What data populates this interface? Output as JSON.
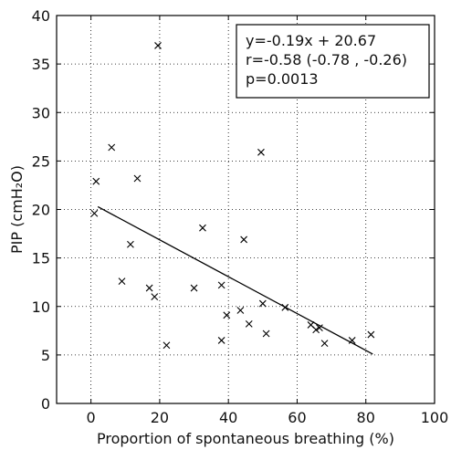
{
  "chart_data": {
    "type": "scatter",
    "xlabel": "Proportion of spontaneous breathing (%)",
    "ylabel": "PIP (cmH₂O)",
    "xlim": [
      -10,
      100
    ],
    "ylim": [
      0,
      40
    ],
    "xticks": [
      0,
      20,
      40,
      60,
      80,
      100
    ],
    "yticks": [
      0,
      5,
      10,
      15,
      20,
      25,
      30,
      35,
      40
    ],
    "grid": true,
    "grid_style": "dotted",
    "marker": "x",
    "points": [
      {
        "x": 19.5,
        "y": 36.9
      },
      {
        "x": 6.0,
        "y": 26.4
      },
      {
        "x": 1.5,
        "y": 22.9
      },
      {
        "x": 1.0,
        "y": 19.6
      },
      {
        "x": 13.5,
        "y": 23.2
      },
      {
        "x": 11.5,
        "y": 16.4
      },
      {
        "x": 9.0,
        "y": 12.6
      },
      {
        "x": 17.0,
        "y": 11.9
      },
      {
        "x": 18.5,
        "y": 11.0
      },
      {
        "x": 22.0,
        "y": 6.0
      },
      {
        "x": 30.0,
        "y": 11.9
      },
      {
        "x": 32.5,
        "y": 18.1
      },
      {
        "x": 38.0,
        "y": 12.2
      },
      {
        "x": 38.0,
        "y": 6.5
      },
      {
        "x": 39.5,
        "y": 9.1
      },
      {
        "x": 43.5,
        "y": 9.6
      },
      {
        "x": 44.5,
        "y": 16.9
      },
      {
        "x": 46.0,
        "y": 8.2
      },
      {
        "x": 49.5,
        "y": 25.9
      },
      {
        "x": 50.0,
        "y": 10.3
      },
      {
        "x": 51.0,
        "y": 7.2
      },
      {
        "x": 56.5,
        "y": 9.9
      },
      {
        "x": 64.0,
        "y": 8.1
      },
      {
        "x": 65.5,
        "y": 7.6
      },
      {
        "x": 66.5,
        "y": 7.8
      },
      {
        "x": 68.0,
        "y": 6.2
      },
      {
        "x": 76.0,
        "y": 6.5
      },
      {
        "x": 81.5,
        "y": 7.1
      }
    ],
    "fit_line": {
      "slope": -0.19,
      "intercept": 20.67,
      "x_range": [
        2,
        82
      ]
    },
    "annotation": {
      "lines": [
        "y=-0.19x + 20.67",
        "r=-0.58 (-0.78 , -0.26)",
        "p=0.0013"
      ],
      "placement": "top-right"
    }
  }
}
